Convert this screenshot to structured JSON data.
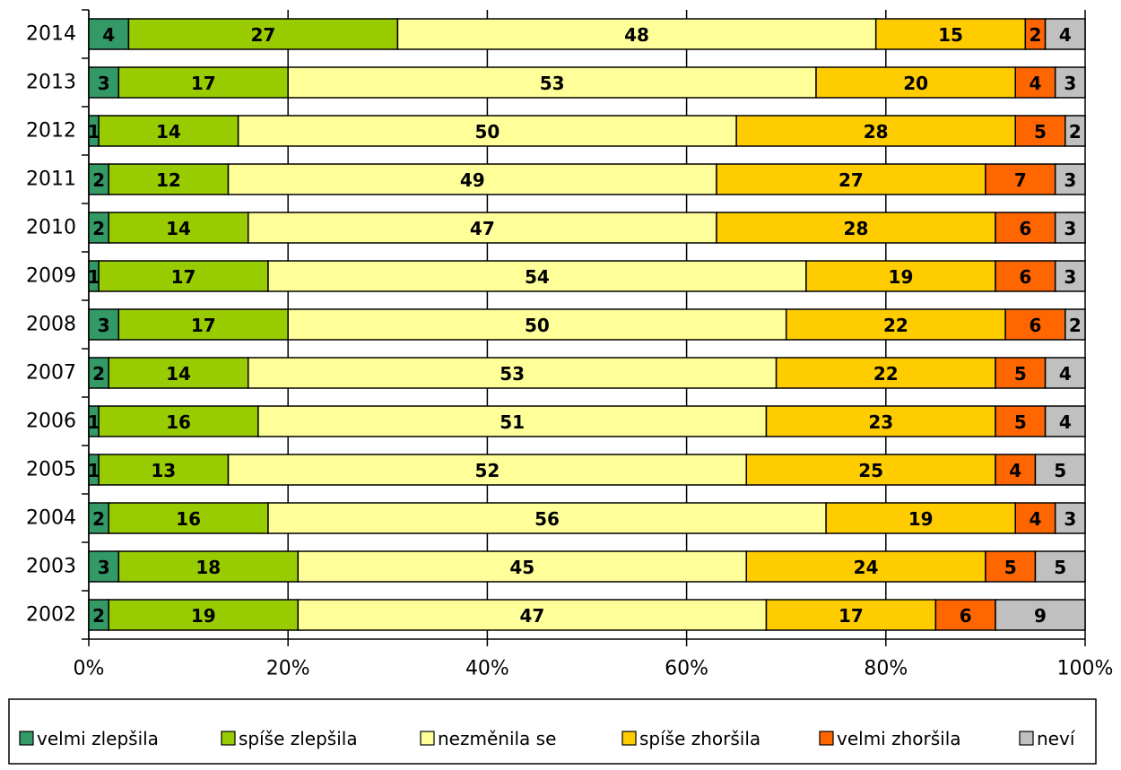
{
  "chart_data": {
    "type": "stacked-bar-horizontal",
    "categories": [
      "2014",
      "2013",
      "2012",
      "2011",
      "2010",
      "2009",
      "2008",
      "2007",
      "2006",
      "2005",
      "2004",
      "2003",
      "2002"
    ],
    "series": [
      {
        "name": "velmi zlepšila",
        "color": "#339966",
        "values": [
          4,
          3,
          1,
          2,
          2,
          1,
          3,
          2,
          1,
          1,
          2,
          3,
          2
        ]
      },
      {
        "name": "spíše zlepšila",
        "color": "#99cc00",
        "values": [
          27,
          17,
          14,
          12,
          14,
          17,
          17,
          14,
          16,
          13,
          16,
          18,
          19
        ]
      },
      {
        "name": "nezměnila se",
        "color": "#ffff99",
        "values": [
          48,
          53,
          50,
          49,
          47,
          54,
          50,
          53,
          51,
          52,
          56,
          45,
          47
        ]
      },
      {
        "name": "spíše zhoršila",
        "color": "#ffcc00",
        "values": [
          15,
          20,
          28,
          27,
          28,
          19,
          22,
          22,
          23,
          25,
          19,
          24,
          17
        ]
      },
      {
        "name": "velmi zhoršila",
        "color": "#ff6600",
        "values": [
          2,
          4,
          5,
          7,
          6,
          6,
          6,
          5,
          5,
          4,
          4,
          5,
          6
        ]
      },
      {
        "name": "neví",
        "color": "#c0c0c0",
        "values": [
          4,
          3,
          2,
          3,
          3,
          3,
          2,
          4,
          4,
          5,
          3,
          5,
          9
        ]
      }
    ],
    "xlim": [
      0,
      100
    ],
    "xticks": [
      {
        "value": 0,
        "label": "0%"
      },
      {
        "value": 20,
        "label": "20%"
      },
      {
        "value": 40,
        "label": "40%"
      },
      {
        "value": 60,
        "label": "60%"
      },
      {
        "value": 80,
        "label": "80%"
      },
      {
        "value": 100,
        "label": "100%"
      }
    ],
    "grid": true,
    "legend": "bottom"
  }
}
